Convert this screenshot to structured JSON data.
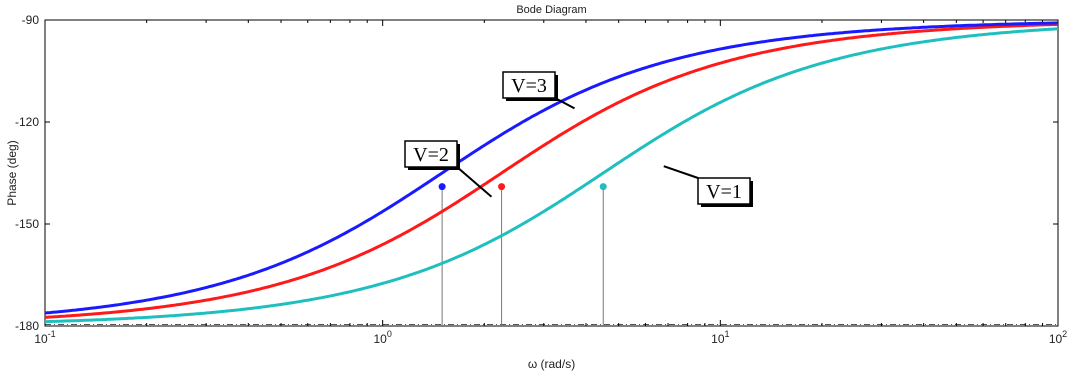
{
  "chart_data": {
    "type": "line",
    "title": "Bode Diagram",
    "xlabel": "ω  (rad/s)",
    "ylabel": "Phase (deg)",
    "xscale": "log",
    "xlim": [
      0.1,
      100
    ],
    "ylim": [
      -180,
      -90
    ],
    "xticks": [
      {
        "base": "10",
        "exp": "-1",
        "value": 0.1
      },
      {
        "base": "10",
        "exp": "0",
        "value": 1
      },
      {
        "base": "10",
        "exp": "1",
        "value": 10
      },
      {
        "base": "10",
        "exp": "2",
        "value": 100
      }
    ],
    "yticks": [
      "-90",
      "-120",
      "-150",
      "-180"
    ],
    "grid": "dashed line at -180",
    "series": [
      {
        "color": "#1a1aff",
        "corner": 1.5,
        "marker": {
          "x": 1.5,
          "y": -139
        }
      },
      {
        "color": "#ff1a1a",
        "corner": 2.25,
        "marker": {
          "x": 2.25,
          "y": -139
        }
      },
      {
        "color": "#1fbfbf",
        "corner": 4.5,
        "marker": {
          "x": 4.5,
          "y": -139
        }
      }
    ],
    "annotations": [
      {
        "text": "V=3",
        "series": 0,
        "x": 3.7,
        "y": -116
      },
      {
        "text": "V=2",
        "series": 1,
        "x": 2.1,
        "y": -142
      },
      {
        "text": "V=1",
        "series": 2,
        "x": 6.8,
        "y": -133
      }
    ]
  }
}
